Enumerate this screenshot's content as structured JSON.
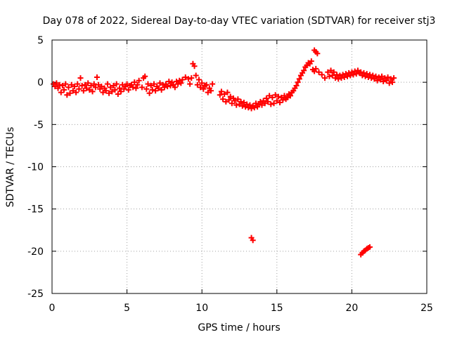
{
  "chart_data": {
    "type": "scatter",
    "title": "Day 078 of 2022, Sidereal Day-to-day VTEC variation (SDTVAR) for receiver stj3",
    "xlabel": "GPS time / hours",
    "ylabel": "SDTVAR / TECUs",
    "xlim": [
      0,
      25
    ],
    "ylim": [
      -25,
      5
    ],
    "xticks": [
      0,
      5,
      10,
      15,
      20,
      25
    ],
    "yticks": [
      -25,
      -20,
      -15,
      -10,
      -5,
      0,
      5
    ],
    "grid": true,
    "marker": "plus",
    "series": [
      {
        "name": "SDTVAR",
        "color": "#ff0000",
        "points": [
          [
            0.1,
            -0.2
          ],
          [
            0.2,
            -0.5
          ],
          [
            0.3,
            -0.1
          ],
          [
            0.4,
            -0.7
          ],
          [
            0.5,
            -0.3
          ],
          [
            0.6,
            -1.2
          ],
          [
            0.7,
            -0.4
          ],
          [
            0.8,
            -0.9
          ],
          [
            0.9,
            -0.2
          ],
          [
            1.0,
            -1.5
          ],
          [
            1.1,
            -0.6
          ],
          [
            1.2,
            -1.3
          ],
          [
            1.3,
            -0.3
          ],
          [
            1.4,
            -1.0
          ],
          [
            1.5,
            -0.5
          ],
          [
            1.6,
            -1.2
          ],
          [
            1.7,
            -0.2
          ],
          [
            1.8,
            -0.8
          ],
          [
            1.9,
            0.5
          ],
          [
            2.0,
            -0.4
          ],
          [
            2.1,
            -1.0
          ],
          [
            2.2,
            -0.3
          ],
          [
            2.3,
            -0.7
          ],
          [
            2.4,
            -0.1
          ],
          [
            2.5,
            -0.9
          ],
          [
            2.6,
            -0.4
          ],
          [
            2.7,
            -1.1
          ],
          [
            2.8,
            -0.2
          ],
          [
            2.9,
            -0.6
          ],
          [
            3.0,
            0.6
          ],
          [
            3.1,
            -0.3
          ],
          [
            3.2,
            -0.8
          ],
          [
            3.3,
            -0.5
          ],
          [
            3.4,
            -1.2
          ],
          [
            3.5,
            -0.7
          ],
          [
            3.6,
            -1.0
          ],
          [
            3.7,
            -0.2
          ],
          [
            3.8,
            -1.3
          ],
          [
            3.9,
            -0.6
          ],
          [
            4.0,
            -1.1
          ],
          [
            4.1,
            -0.4
          ],
          [
            4.2,
            -0.9
          ],
          [
            4.3,
            -0.2
          ],
          [
            4.4,
            -1.4
          ],
          [
            4.5,
            -0.7
          ],
          [
            4.6,
            -1.1
          ],
          [
            4.7,
            -0.3
          ],
          [
            4.8,
            -0.8
          ],
          [
            4.9,
            -0.5
          ],
          [
            5.0,
            -0.2
          ],
          [
            5.1,
            -0.9
          ],
          [
            5.2,
            -0.4
          ],
          [
            5.3,
            -0.3
          ],
          [
            5.4,
            -0.6
          ],
          [
            5.5,
            0.0
          ],
          [
            5.6,
            -0.7
          ],
          [
            5.7,
            -0.3
          ],
          [
            5.8,
            0.2
          ],
          [
            6.0,
            -0.6
          ],
          [
            6.1,
            0.5
          ],
          [
            6.2,
            0.7
          ],
          [
            6.3,
            -0.8
          ],
          [
            6.4,
            -0.2
          ],
          [
            6.5,
            -1.3
          ],
          [
            6.6,
            -0.4
          ],
          [
            6.7,
            -0.9
          ],
          [
            6.8,
            -0.2
          ],
          [
            6.9,
            -1.0
          ],
          [
            7.0,
            -0.5
          ],
          [
            7.1,
            -0.7
          ],
          [
            7.2,
            -0.1
          ],
          [
            7.3,
            -0.9
          ],
          [
            7.4,
            -0.3
          ],
          [
            7.5,
            -0.6
          ],
          [
            7.6,
            -0.2
          ],
          [
            7.7,
            -0.5
          ],
          [
            7.8,
            0.1
          ],
          [
            7.9,
            -0.4
          ],
          [
            8.0,
            0.0
          ],
          [
            8.1,
            -0.3
          ],
          [
            8.2,
            -0.6
          ],
          [
            8.3,
            0.1
          ],
          [
            8.4,
            -0.2
          ],
          [
            8.5,
            0.2
          ],
          [
            8.6,
            -0.1
          ],
          [
            8.7,
            0.3
          ],
          [
            8.9,
            0.6
          ],
          [
            9.1,
            0.4
          ],
          [
            9.2,
            -0.2
          ],
          [
            9.3,
            0.5
          ],
          [
            9.4,
            2.2
          ],
          [
            9.5,
            1.9
          ],
          [
            9.6,
            0.8
          ],
          [
            9.7,
            -0.3
          ],
          [
            9.8,
            0.3
          ],
          [
            9.9,
            -0.6
          ],
          [
            10.0,
            -0.1
          ],
          [
            10.1,
            -0.8
          ],
          [
            10.2,
            -0.4
          ],
          [
            10.3,
            -0.3
          ],
          [
            10.4,
            -1.2
          ],
          [
            10.5,
            -0.7
          ],
          [
            10.6,
            -1.0
          ],
          [
            10.7,
            -0.2
          ],
          [
            11.2,
            -1.5
          ],
          [
            11.3,
            -1.1
          ],
          [
            11.4,
            -2.0
          ],
          [
            11.5,
            -1.4
          ],
          [
            11.6,
            -2.3
          ],
          [
            11.7,
            -1.2
          ],
          [
            11.8,
            -2.1
          ],
          [
            11.9,
            -1.7
          ],
          [
            12.0,
            -2.5
          ],
          [
            12.1,
            -1.9
          ],
          [
            12.2,
            -2.2
          ],
          [
            12.3,
            -2.7
          ],
          [
            12.4,
            -2.0
          ],
          [
            12.5,
            -2.6
          ],
          [
            12.6,
            -2.3
          ],
          [
            12.7,
            -2.8
          ],
          [
            12.8,
            -2.4
          ],
          [
            12.9,
            -2.9
          ],
          [
            13.0,
            -2.6
          ],
          [
            13.1,
            -3.0
          ],
          [
            13.2,
            -2.7
          ],
          [
            13.3,
            -3.1
          ],
          [
            13.4,
            -2.8
          ],
          [
            13.5,
            -3.0
          ],
          [
            13.6,
            -2.5
          ],
          [
            13.7,
            -2.9
          ],
          [
            13.8,
            -2.6
          ],
          [
            13.9,
            -2.3
          ],
          [
            14.0,
            -2.7
          ],
          [
            14.1,
            -2.2
          ],
          [
            14.2,
            -2.5
          ],
          [
            14.3,
            -1.9
          ],
          [
            14.4,
            -2.3
          ],
          [
            14.5,
            -1.6
          ],
          [
            14.6,
            -2.6
          ],
          [
            14.7,
            -1.8
          ],
          [
            14.8,
            -2.5
          ],
          [
            14.9,
            -1.5
          ],
          [
            15.0,
            -2.2
          ],
          [
            15.1,
            -1.7
          ],
          [
            15.2,
            -2.4
          ],
          [
            15.3,
            -1.8
          ],
          [
            15.4,
            -2.1
          ],
          [
            15.5,
            -1.6
          ],
          [
            15.6,
            -2.0
          ],
          [
            15.7,
            -1.8
          ],
          [
            15.8,
            -1.4
          ],
          [
            15.9,
            -1.6
          ],
          [
            16.0,
            -1.2
          ],
          [
            16.1,
            -1.0
          ],
          [
            16.2,
            -0.7
          ],
          [
            16.3,
            -0.4
          ],
          [
            16.4,
            0.0
          ],
          [
            16.5,
            0.4
          ],
          [
            16.6,
            0.8
          ],
          [
            16.7,
            1.1
          ],
          [
            16.8,
            1.4
          ],
          [
            16.9,
            1.8
          ],
          [
            17.0,
            2.0
          ],
          [
            17.1,
            2.3
          ],
          [
            17.2,
            2.2
          ],
          [
            17.3,
            2.5
          ],
          [
            17.5,
            3.8
          ],
          [
            17.6,
            3.6
          ],
          [
            17.7,
            3.4
          ],
          [
            17.4,
            1.5
          ],
          [
            17.5,
            1.3
          ],
          [
            17.6,
            1.6
          ],
          [
            17.8,
            1.2
          ],
          [
            18.0,
            0.9
          ],
          [
            18.2,
            0.5
          ],
          [
            18.4,
            1.2
          ],
          [
            18.5,
            0.7
          ],
          [
            18.6,
            1.4
          ],
          [
            18.7,
            0.8
          ],
          [
            18.8,
            1.2
          ],
          [
            18.9,
            0.5
          ],
          [
            19.0,
            0.9
          ],
          [
            19.1,
            0.4
          ],
          [
            19.2,
            0.8
          ],
          [
            19.3,
            0.5
          ],
          [
            19.4,
            0.9
          ],
          [
            19.5,
            0.6
          ],
          [
            19.6,
            1.0
          ],
          [
            19.7,
            0.7
          ],
          [
            19.8,
            1.1
          ],
          [
            19.9,
            0.8
          ],
          [
            20.0,
            1.2
          ],
          [
            20.1,
            0.9
          ],
          [
            20.2,
            1.3
          ],
          [
            20.3,
            1.0
          ],
          [
            20.4,
            1.4
          ],
          [
            20.5,
            1.1
          ],
          [
            20.6,
            1.2
          ],
          [
            20.7,
            0.8
          ],
          [
            20.8,
            1.1
          ],
          [
            20.9,
            0.7
          ],
          [
            21.0,
            1.0
          ],
          [
            21.1,
            0.6
          ],
          [
            21.2,
            0.9
          ],
          [
            21.3,
            0.5
          ],
          [
            21.4,
            0.8
          ],
          [
            21.5,
            0.4
          ],
          [
            21.6,
            0.7
          ],
          [
            21.7,
            0.2
          ],
          [
            21.8,
            0.6
          ],
          [
            21.9,
            0.3
          ],
          [
            22.0,
            0.7
          ],
          [
            22.1,
            0.1
          ],
          [
            22.2,
            0.5
          ],
          [
            22.3,
            0.2
          ],
          [
            22.4,
            0.6
          ],
          [
            22.5,
            -0.1
          ],
          [
            22.6,
            0.4
          ],
          [
            22.7,
            0.0
          ],
          [
            22.8,
            0.5
          ],
          [
            13.3,
            -18.4
          ],
          [
            13.4,
            -18.7
          ],
          [
            20.6,
            -20.4
          ],
          [
            20.7,
            -20.2
          ],
          [
            20.8,
            -20.0
          ],
          [
            20.9,
            -19.9
          ],
          [
            21.0,
            -19.7
          ],
          [
            21.1,
            -19.6
          ],
          [
            21.2,
            -19.5
          ]
        ]
      }
    ]
  }
}
